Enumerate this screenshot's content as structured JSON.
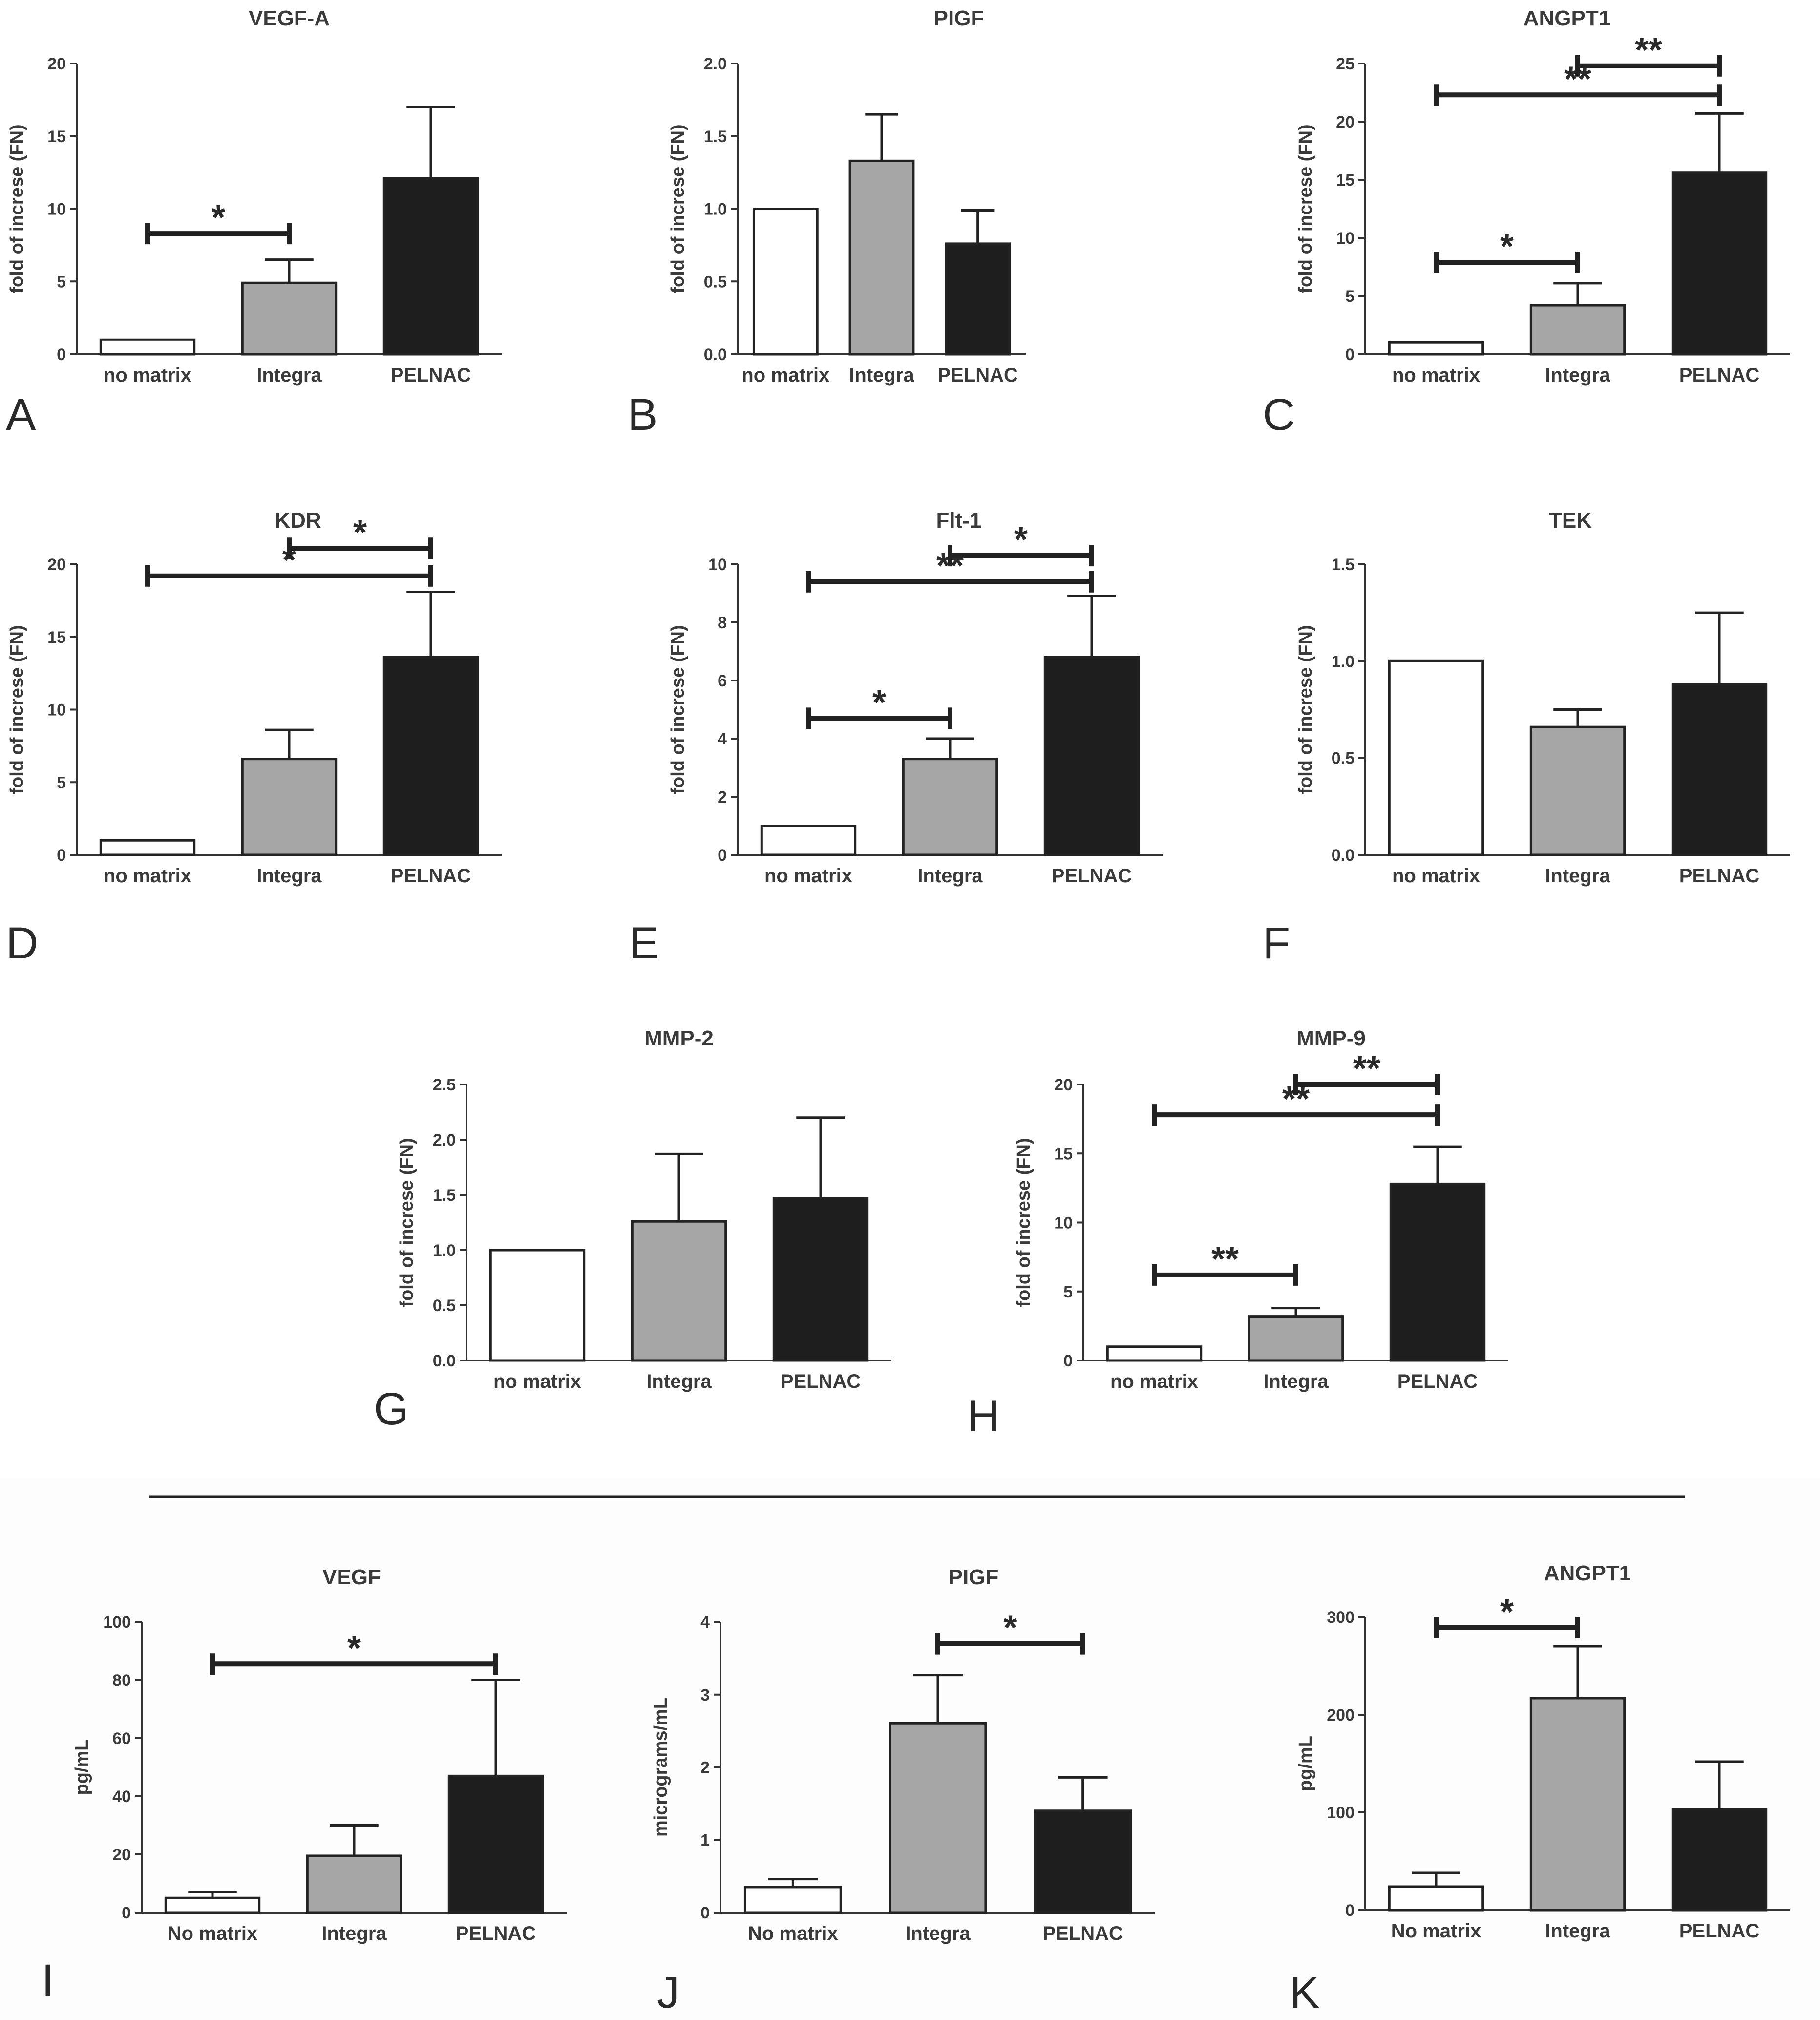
{
  "figure": {
    "colors": {
      "no_matrix": "#ffffff",
      "integra": "#a6a6a6",
      "pelnac": "#1e1e1e",
      "ink": "#222222"
    }
  },
  "chart_data": [
    {
      "id": "A",
      "panel_label": "A",
      "type": "bar",
      "title": "VEGF-A",
      "ylabel": "fold of increse (FN)",
      "xlabel": "",
      "categories": [
        "no matrix",
        "Integra",
        "PELNAC"
      ],
      "values": [
        1.0,
        4.9,
        12.1
      ],
      "errors": [
        0,
        1.6,
        4.9
      ],
      "ylim": [
        0,
        20
      ],
      "yticks": [
        0,
        5,
        10,
        15,
        20
      ],
      "ytick_labels": [
        "0",
        "5",
        "10",
        "15",
        "20"
      ],
      "significance": [
        {
          "from": 0,
          "to": 1,
          "y": 8.3,
          "label": "*"
        }
      ]
    },
    {
      "id": "B",
      "panel_label": "B",
      "type": "bar",
      "title": "PIGF",
      "ylabel": "fold of increse (FN)",
      "xlabel": "",
      "categories": [
        "no matrix",
        "Integra",
        "PELNAC"
      ],
      "values": [
        1.0,
        1.33,
        0.76
      ],
      "errors": [
        0,
        0.32,
        0.23
      ],
      "ylim": [
        0,
        2.0
      ],
      "yticks": [
        0,
        0.5,
        1.0,
        1.5,
        2.0
      ],
      "ytick_labels": [
        "0.0",
        "0.5",
        "1.0",
        "1.5",
        "2.0"
      ],
      "significance": []
    },
    {
      "id": "C",
      "panel_label": "C",
      "type": "bar",
      "title": "ANGPT1",
      "ylabel": "fold of increse (FN)",
      "xlabel": "",
      "categories": [
        "no matrix",
        "Integra",
        "PELNAC"
      ],
      "values": [
        1.0,
        4.2,
        15.6
      ],
      "errors": [
        0,
        1.9,
        5.1
      ],
      "ylim": [
        0,
        25
      ],
      "yticks": [
        0,
        5,
        10,
        15,
        20,
        25
      ],
      "ytick_labels": [
        "0",
        "5",
        "10",
        "15",
        "20",
        "25"
      ],
      "significance": [
        {
          "from": 0,
          "to": 1,
          "y": 7.9,
          "label": "*"
        },
        {
          "from": 0,
          "to": 2,
          "y": 22.3,
          "label": "**"
        },
        {
          "from": 1,
          "to": 2,
          "y": 24.8,
          "label": "**"
        }
      ]
    },
    {
      "id": "D",
      "panel_label": "D",
      "type": "bar",
      "title": "KDR",
      "ylabel": "fold of increse (FN)",
      "xlabel": "",
      "categories": [
        "no matrix",
        "Integra",
        "PELNAC"
      ],
      "values": [
        1.0,
        6.6,
        13.6
      ],
      "errors": [
        0,
        2.0,
        4.5
      ],
      "ylim": [
        0,
        20
      ],
      "yticks": [
        0,
        5,
        10,
        15,
        20
      ],
      "ytick_labels": [
        "0",
        "5",
        "10",
        "15",
        "20"
      ],
      "significance": [
        {
          "from": 0,
          "to": 2,
          "y": 19.2,
          "label": "*"
        },
        {
          "from": 1,
          "to": 2,
          "y": 21.1,
          "label": "*"
        }
      ]
    },
    {
      "id": "E",
      "panel_label": "E",
      "type": "bar",
      "title": "Flt-1",
      "ylabel": "fold of increse (FN)",
      "xlabel": "",
      "categories": [
        "no matrix",
        "Integra",
        "PELNAC"
      ],
      "values": [
        1.0,
        3.3,
        6.8
      ],
      "errors": [
        0,
        0.7,
        2.1
      ],
      "ylim": [
        0,
        10
      ],
      "yticks": [
        0,
        2,
        4,
        6,
        8,
        10
      ],
      "ytick_labels": [
        "0",
        "2",
        "4",
        "6",
        "8",
        "10"
      ],
      "significance": [
        {
          "from": 0,
          "to": 1,
          "y": 4.7,
          "label": "*"
        },
        {
          "from": 0,
          "to": 2,
          "y": 9.4,
          "label": "**"
        },
        {
          "from": 1,
          "to": 2,
          "y": 10.3,
          "label": "*"
        }
      ]
    },
    {
      "id": "F",
      "panel_label": "F",
      "type": "bar",
      "title": "TEK",
      "ylabel": "fold of increse (FN)",
      "xlabel": "",
      "categories": [
        "no matrix",
        "Integra",
        "PELNAC"
      ],
      "values": [
        1.0,
        0.66,
        0.88
      ],
      "errors": [
        0,
        0.09,
        0.37
      ],
      "ylim": [
        0,
        1.5
      ],
      "yticks": [
        0,
        0.5,
        1.0,
        1.5
      ],
      "ytick_labels": [
        "0.0",
        "0.5",
        "1.0",
        "1.5"
      ],
      "significance": []
    },
    {
      "id": "G",
      "panel_label": "G",
      "type": "bar",
      "title": "MMP-2",
      "ylabel": "fold of increse (FN)",
      "xlabel": "",
      "categories": [
        "no matrix",
        "Integra",
        "PELNAC"
      ],
      "values": [
        1.0,
        1.26,
        1.47
      ],
      "errors": [
        0,
        0.61,
        0.73
      ],
      "ylim": [
        0,
        2.5
      ],
      "yticks": [
        0,
        0.5,
        1.0,
        1.5,
        2.0,
        2.5
      ],
      "ytick_labels": [
        "0.0",
        "0.5",
        "1.0",
        "1.5",
        "2.0",
        "2.5"
      ],
      "significance": []
    },
    {
      "id": "H",
      "panel_label": "H",
      "type": "bar",
      "title": "MMP-9",
      "ylabel": "fold of increse (FN)",
      "xlabel": "",
      "categories": [
        "no matrix",
        "Integra",
        "PELNAC"
      ],
      "values": [
        1.0,
        3.2,
        12.8
      ],
      "errors": [
        0,
        0.6,
        2.7
      ],
      "ylim": [
        0,
        20
      ],
      "yticks": [
        0,
        5,
        10,
        15,
        20
      ],
      "ytick_labels": [
        "0",
        "5",
        "10",
        "15",
        "20"
      ],
      "significance": [
        {
          "from": 0,
          "to": 1,
          "y": 6.2,
          "label": "**"
        },
        {
          "from": 0,
          "to": 2,
          "y": 17.8,
          "label": "**"
        },
        {
          "from": 1,
          "to": 2,
          "y": 20.0,
          "label": "**"
        }
      ]
    },
    {
      "id": "I",
      "panel_label": "I",
      "type": "bar",
      "title": "VEGF",
      "ylabel": "pg/mL",
      "xlabel": "",
      "categories": [
        "No matrix",
        "Integra",
        "PELNAC"
      ],
      "values": [
        5,
        19.5,
        47
      ],
      "errors": [
        2,
        10.5,
        33
      ],
      "ylim": [
        0,
        100
      ],
      "yticks": [
        0,
        20,
        40,
        60,
        80,
        100
      ],
      "ytick_labels": [
        "0",
        "20",
        "40",
        "60",
        "80",
        "100"
      ],
      "significance": [
        {
          "from": 0,
          "to": 2,
          "y": 85.5,
          "label": "*"
        }
      ]
    },
    {
      "id": "J",
      "panel_label": "J",
      "type": "bar",
      "title": "PIGF",
      "ylabel": "micrograms/mL",
      "xlabel": "",
      "categories": [
        "No matrix",
        "Integra",
        "PELNAC"
      ],
      "values": [
        0.35,
        2.6,
        1.4
      ],
      "errors": [
        0.11,
        0.67,
        0.46
      ],
      "ylim": [
        0,
        4
      ],
      "yticks": [
        0,
        1,
        2,
        3,
        4
      ],
      "ytick_labels": [
        "0",
        "1",
        "2",
        "3",
        "4"
      ],
      "significance": [
        {
          "from": 1,
          "to": 2,
          "y": 3.7,
          "label": "*"
        }
      ]
    },
    {
      "id": "K",
      "panel_label": "K",
      "type": "bar",
      "title": "ANGPT1",
      "ylabel": "pg/mL",
      "xlabel": "",
      "categories": [
        "No matrix",
        "Integra",
        "PELNAC"
      ],
      "values": [
        24,
        217,
        103
      ],
      "errors": [
        14,
        53,
        49
      ],
      "ylim": [
        0,
        300
      ],
      "yticks": [
        0,
        100,
        200,
        300
      ],
      "ytick_labels": [
        "0",
        "100",
        "200",
        "300"
      ],
      "significance": [
        {
          "from": 0,
          "to": 1,
          "y": 289,
          "label": "*"
        }
      ]
    }
  ]
}
